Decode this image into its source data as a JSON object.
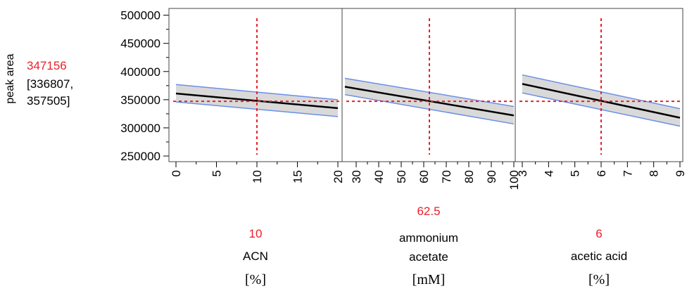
{
  "response": {
    "label": "peak area",
    "current_value": "347156",
    "ci_line1": "[336807,",
    "ci_line2": "357505]"
  },
  "y_axis": {
    "ticks": [
      "500000",
      "450000",
      "400000",
      "350000",
      "300000",
      "250000"
    ],
    "ylim": [
      240000,
      512000
    ]
  },
  "colors": {
    "fit_line": "#000000",
    "ci_band": "#d9d9d9",
    "ci_edge": "#6b8fe6",
    "crosshair": "#e8202a",
    "current_value_text": "#e8202a"
  },
  "chart_data": [
    {
      "type": "line",
      "factor": "ACN",
      "unit": "[%]",
      "current": 10,
      "current_label": "10",
      "xlim": [
        0,
        20
      ],
      "x_ticks": [
        "0",
        "5",
        "10",
        "15",
        "20"
      ],
      "x": [
        0,
        20
      ],
      "y": [
        361000,
        335000
      ],
      "ci_lower": [
        346000,
        320000
      ],
      "ci_upper": [
        377000,
        350000
      ],
      "name_lines": [
        "ACN"
      ]
    },
    {
      "type": "line",
      "factor": "ammonium acetate",
      "unit": "[mM]",
      "current": 62.5,
      "current_label": "62.5",
      "xlim": [
        25,
        100
      ],
      "x_ticks": [
        "30",
        "40",
        "50",
        "60",
        "70",
        "80",
        "90",
        "100"
      ],
      "x": [
        25,
        100
      ],
      "y": [
        373000,
        322000
      ],
      "ci_lower": [
        359000,
        307000
      ],
      "ci_upper": [
        388000,
        338000
      ],
      "name_lines": [
        "ammonium",
        "acetate"
      ]
    },
    {
      "type": "line",
      "factor": "acetic acid",
      "unit": "[%]",
      "current": 6,
      "current_label": "6",
      "xlim": [
        3,
        9
      ],
      "x_ticks": [
        "3",
        "4",
        "5",
        "6",
        "7",
        "8",
        "9"
      ],
      "x": [
        3,
        9
      ],
      "y": [
        378000,
        318000
      ],
      "ci_lower": [
        362000,
        303000
      ],
      "ci_upper": [
        394000,
        334000
      ],
      "name_lines": [
        "acetic acid"
      ]
    }
  ]
}
